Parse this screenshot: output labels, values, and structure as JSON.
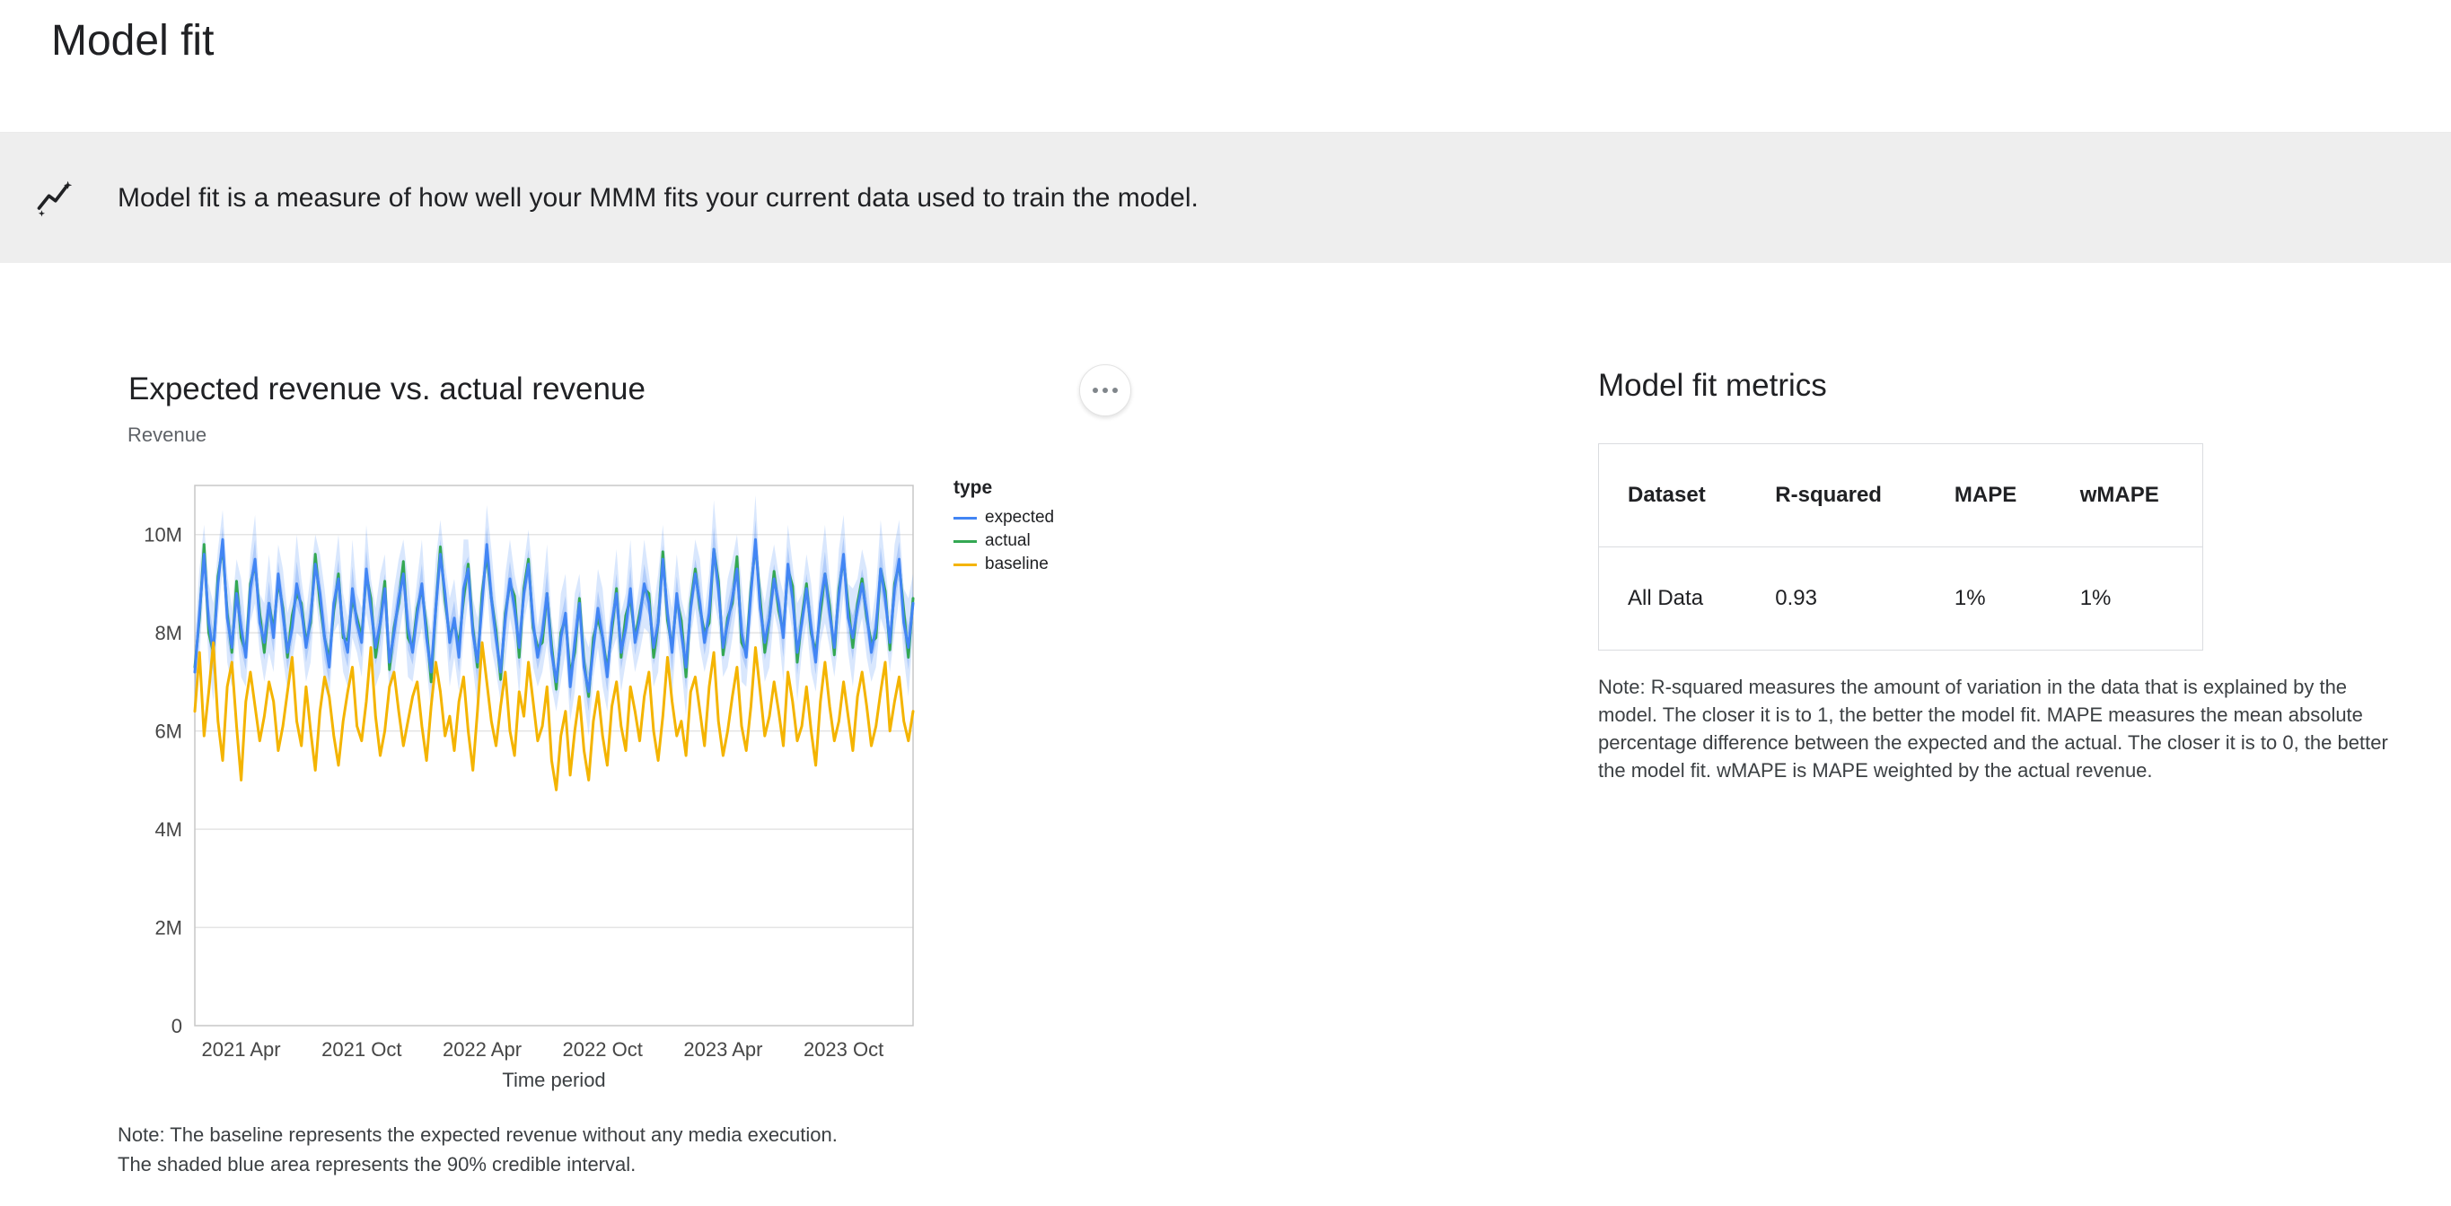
{
  "page": {
    "title": "Model fit"
  },
  "banner": {
    "icon": "insights-icon",
    "text": "Model fit is a measure of how well your MMM fits your current data used to train the model."
  },
  "chart_section": {
    "title": "Expected revenue vs. actual revenue",
    "y_axis_label": "Revenue",
    "note": "Note: The baseline represents the expected revenue without any media execution.\nThe shaded blue area represents the 90% credible interval."
  },
  "metrics_section": {
    "title": "Model fit metrics",
    "table": {
      "headers": [
        "Dataset",
        "R-squared",
        "MAPE",
        "wMAPE"
      ],
      "rows": [
        [
          "All Data",
          "0.93",
          "1%",
          "1%"
        ]
      ]
    },
    "note": "Note: R-squared measures the amount of variation in the data that is explained by the model. The closer it is to 1, the better the model fit. MAPE measures the mean absolute percentage difference between the expected and the actual. The closer it is to 0, the better the model fit. wMAPE is MAPE weighted by the actual revenue."
  },
  "chart_data": {
    "type": "line",
    "title": "Expected revenue vs. actual revenue",
    "xlabel": "Time period",
    "ylabel": "Revenue",
    "x_unit": "week_index_from_2021_jan",
    "y_unit": "revenue_millions",
    "xlim": [
      0,
      155
    ],
    "ylim": [
      0,
      11
    ],
    "grid": "horizontal",
    "legend_position": "right",
    "legend_title": "type",
    "y_ticks": [
      {
        "v": 0,
        "label": "0"
      },
      {
        "v": 2,
        "label": "2M"
      },
      {
        "v": 4,
        "label": "4M"
      },
      {
        "v": 6,
        "label": "6M"
      },
      {
        "v": 8,
        "label": "8M"
      },
      {
        "v": 10,
        "label": "10M"
      }
    ],
    "x_ticks": [
      {
        "i": 10,
        "label": "2021 Apr"
      },
      {
        "i": 36,
        "label": "2021 Oct"
      },
      {
        "i": 62,
        "label": "2022 Apr"
      },
      {
        "i": 88,
        "label": "2022 Oct"
      },
      {
        "i": 114,
        "label": "2023 Apr"
      },
      {
        "i": 140,
        "label": "2023 Oct"
      }
    ],
    "series": [
      {
        "name": "expected",
        "color": "#4285F4",
        "values": [
          7.2,
          8.4,
          9.6,
          8.2,
          7.6,
          9.0,
          9.9,
          8.3,
          7.7,
          8.8,
          8.1,
          7.5,
          8.9,
          9.5,
          8.2,
          7.8,
          8.6,
          7.9,
          9.2,
          8.4,
          7.6,
          8.1,
          9.0,
          8.5,
          7.7,
          8.3,
          9.4,
          8.8,
          7.9,
          7.3,
          8.6,
          9.1,
          8.0,
          7.6,
          8.9,
          8.2,
          7.8,
          9.3,
          8.5,
          7.7,
          8.2,
          8.9,
          7.4,
          8.0,
          8.7,
          9.2,
          8.1,
          7.6,
          8.4,
          9.0,
          7.9,
          7.2,
          8.5,
          9.6,
          8.8,
          7.8,
          8.3,
          7.5,
          8.9,
          9.3,
          8.0,
          7.4,
          8.6,
          9.8,
          8.7,
          7.9,
          7.2,
          8.3,
          9.1,
          8.5,
          7.7,
          8.8,
          9.4,
          8.2,
          7.5,
          8.0,
          8.8,
          7.6,
          7.0,
          7.9,
          8.4,
          6.9,
          7.8,
          8.6,
          7.3,
          6.8,
          7.7,
          8.5,
          7.9,
          7.1,
          8.2,
          8.8,
          7.6,
          8.1,
          8.9,
          7.8,
          8.3,
          9.0,
          8.6,
          7.7,
          8.2,
          9.5,
          8.4,
          7.6,
          8.8,
          8.0,
          7.3,
          8.5,
          9.2,
          8.6,
          7.8,
          8.4,
          9.7,
          8.9,
          7.7,
          8.2,
          8.7,
          9.3,
          8.0,
          7.5,
          8.8,
          9.9,
          8.5,
          7.8,
          8.3,
          9.1,
          8.6,
          7.9,
          9.4,
          8.7,
          7.6,
          8.2,
          8.9,
          8.1,
          7.4,
          8.6,
          9.2,
          8.4,
          7.7,
          8.8,
          9.6,
          8.3,
          7.9,
          8.5,
          9.0,
          8.4,
          7.6,
          8.1,
          9.3,
          8.7,
          7.8,
          8.9,
          9.5,
          8.2,
          7.7,
          8.6
        ]
      },
      {
        "name": "actual",
        "color": "#34A853",
        "values": [
          7.3,
          8.3,
          9.8,
          8.0,
          7.6,
          9.15,
          9.75,
          8.4,
          7.6,
          9.05,
          7.9,
          7.6,
          9.0,
          9.4,
          8.4,
          7.6,
          8.6,
          8.05,
          9.05,
          8.5,
          7.5,
          8.35,
          8.8,
          8.6,
          7.8,
          8.2,
          9.6,
          8.6,
          7.9,
          7.45,
          8.45,
          9.2,
          7.9,
          7.85,
          8.7,
          8.3,
          7.9,
          9.2,
          8.7,
          7.5,
          8.2,
          9.05,
          7.25,
          8.1,
          8.6,
          9.45,
          7.9,
          7.7,
          8.5,
          8.9,
          8.1,
          7.0,
          8.5,
          9.75,
          8.65,
          7.9,
          8.2,
          7.75,
          8.7,
          9.4,
          8.1,
          7.3,
          8.8,
          9.6,
          8.7,
          8.05,
          7.05,
          8.4,
          9.0,
          8.75,
          7.5,
          8.9,
          9.5,
          8.1,
          7.7,
          7.8,
          8.8,
          7.75,
          6.85,
          8.0,
          8.3,
          7.15,
          7.6,
          8.7,
          7.4,
          6.7,
          7.9,
          8.3,
          7.9,
          7.25,
          8.05,
          8.9,
          7.5,
          8.35,
          8.7,
          7.9,
          8.4,
          8.9,
          8.8,
          7.5,
          8.2,
          9.65,
          8.25,
          7.7,
          8.7,
          8.25,
          7.1,
          8.6,
          9.3,
          8.5,
          8.0,
          8.2,
          9.7,
          9.05,
          7.55,
          8.3,
          8.6,
          9.55,
          7.8,
          7.6,
          8.9,
          9.8,
          8.7,
          7.6,
          8.3,
          9.25,
          8.45,
          8.0,
          9.3,
          8.95,
          7.4,
          8.3,
          9.0,
          8.0,
          7.6,
          8.4,
          9.2,
          8.55,
          7.55,
          8.9,
          9.5,
          8.55,
          7.7,
          8.6,
          9.1,
          8.3,
          7.8,
          7.9,
          9.3,
          8.85,
          7.65,
          9.0,
          9.4,
          8.45,
          7.5,
          8.7
        ]
      },
      {
        "name": "baseline",
        "color": "#F4B400",
        "values": [
          6.4,
          7.6,
          5.9,
          6.8,
          7.8,
          6.2,
          5.4,
          6.9,
          7.4,
          6.1,
          5.0,
          6.6,
          7.2,
          6.5,
          5.8,
          6.3,
          7.0,
          6.6,
          5.6,
          6.1,
          6.8,
          7.5,
          6.2,
          5.7,
          6.9,
          6.0,
          5.2,
          6.4,
          7.1,
          6.7,
          5.9,
          5.3,
          6.2,
          6.8,
          7.3,
          6.1,
          5.8,
          6.6,
          7.7,
          6.3,
          5.5,
          6.0,
          6.9,
          7.2,
          6.4,
          5.7,
          6.2,
          6.7,
          7.0,
          6.1,
          5.4,
          6.5,
          7.4,
          6.8,
          5.9,
          6.3,
          5.6,
          6.6,
          7.1,
          6.0,
          5.2,
          6.4,
          7.8,
          7.0,
          6.2,
          5.7,
          6.5,
          7.2,
          6.0,
          5.5,
          6.8,
          6.3,
          7.4,
          6.6,
          5.8,
          6.1,
          6.9,
          5.4,
          4.8,
          5.9,
          6.4,
          5.1,
          6.0,
          6.7,
          5.6,
          5.0,
          6.2,
          6.8,
          5.9,
          5.3,
          6.5,
          7.0,
          6.1,
          5.6,
          6.9,
          6.4,
          5.8,
          6.7,
          7.2,
          6.0,
          5.4,
          6.3,
          7.5,
          6.6,
          5.9,
          6.2,
          5.5,
          6.8,
          7.1,
          6.4,
          5.7,
          6.9,
          7.6,
          6.2,
          5.5,
          6.0,
          6.7,
          7.3,
          6.1,
          5.6,
          6.5,
          7.7,
          6.8,
          5.9,
          6.3,
          7.0,
          6.4,
          5.7,
          7.2,
          6.6,
          5.8,
          6.1,
          6.9,
          6.0,
          5.3,
          6.6,
          7.4,
          6.5,
          5.8,
          6.2,
          7.0,
          6.3,
          5.6,
          6.7,
          7.2,
          6.5,
          5.7,
          6.1,
          6.8,
          7.4,
          6.0,
          6.6,
          7.1,
          6.2,
          5.8,
          6.4
        ]
      }
    ],
    "band": {
      "label": "90% credible interval",
      "center": "expected",
      "color90": "rgba(66,133,244,0.20)",
      "color50": "rgba(66,133,244,0.26)",
      "halfwidth90": [
        0.7,
        0.9,
        0.6,
        0.8,
        1.0,
        0.7,
        0.6,
        0.9,
        0.8,
        0.7,
        1.0,
        0.6,
        0.7,
        0.9,
        0.6,
        0.8,
        1.0,
        0.7,
        0.6,
        0.9,
        0.8,
        0.7,
        1.0,
        0.6,
        0.7,
        0.9,
        0.6,
        0.8,
        1.0,
        0.7,
        0.6,
        0.9,
        0.8,
        0.7,
        1.0,
        0.6,
        0.7,
        0.9,
        0.6,
        0.8,
        1.0,
        0.7,
        0.6,
        0.9,
        0.8,
        0.7,
        1.0,
        0.6,
        0.7,
        0.9,
        0.6,
        0.8,
        1.0,
        0.7,
        0.6,
        0.9,
        0.8,
        0.7,
        1.0,
        0.6,
        0.7,
        0.9,
        0.6,
        0.8,
        1.0,
        0.7,
        0.6,
        0.9,
        0.8,
        0.7,
        1.0,
        0.6,
        0.7,
        0.9,
        0.6,
        0.8,
        1.0,
        0.7,
        0.6,
        0.9,
        0.8,
        0.7,
        1.0,
        0.6,
        0.7,
        0.9,
        0.6,
        0.8,
        1.0,
        0.7,
        0.6,
        0.9,
        0.8,
        0.7,
        1.0,
        0.6,
        0.7,
        0.9,
        0.6,
        0.8,
        1.0,
        0.7,
        0.6,
        0.9,
        0.8,
        0.7,
        1.0,
        0.6,
        0.7,
        0.9,
        0.6,
        0.8,
        1.0,
        0.7,
        0.6,
        0.9,
        0.8,
        0.7,
        1.0,
        0.6,
        0.7,
        0.9,
        0.6,
        0.8,
        1.0,
        0.7,
        0.6,
        0.9,
        0.8,
        0.7,
        1.0,
        0.6,
        0.7,
        0.9,
        0.6,
        0.8,
        1.0,
        0.7,
        0.6,
        0.9,
        0.8,
        0.7,
        1.0,
        0.6,
        0.7,
        0.9,
        0.6,
        0.8,
        1.0,
        0.7,
        0.6,
        0.9,
        0.8,
        0.7,
        1.0,
        0.6
      ],
      "halfwidth50": [
        0.3,
        0.4,
        0.25,
        0.35,
        0.45,
        0.3,
        0.25,
        0.4,
        0.35,
        0.3,
        0.45,
        0.25,
        0.3,
        0.4,
        0.25,
        0.35,
        0.45,
        0.3,
        0.25,
        0.4,
        0.35,
        0.3,
        0.45,
        0.25,
        0.3,
        0.4,
        0.25,
        0.35,
        0.45,
        0.3,
        0.25,
        0.4,
        0.35,
        0.3,
        0.45,
        0.25,
        0.3,
        0.4,
        0.25,
        0.35,
        0.45,
        0.3,
        0.25,
        0.4,
        0.35,
        0.3,
        0.45,
        0.25,
        0.3,
        0.4,
        0.25,
        0.35,
        0.45,
        0.3,
        0.25,
        0.4,
        0.35,
        0.3,
        0.45,
        0.25,
        0.3,
        0.4,
        0.25,
        0.35,
        0.45,
        0.3,
        0.25,
        0.4,
        0.35,
        0.3,
        0.45,
        0.25,
        0.3,
        0.4,
        0.25,
        0.35,
        0.45,
        0.3,
        0.25,
        0.4,
        0.35,
        0.3,
        0.45,
        0.25,
        0.3,
        0.4,
        0.25,
        0.35,
        0.45,
        0.3,
        0.25,
        0.4,
        0.35,
        0.3,
        0.45,
        0.25,
        0.3,
        0.4,
        0.25,
        0.35,
        0.45,
        0.3,
        0.25,
        0.4,
        0.35,
        0.3,
        0.45,
        0.25,
        0.3,
        0.4,
        0.25,
        0.35,
        0.45,
        0.3,
        0.25,
        0.4,
        0.35,
        0.3,
        0.45,
        0.25,
        0.3,
        0.4,
        0.25,
        0.35,
        0.45,
        0.3,
        0.25,
        0.4,
        0.35,
        0.3,
        0.45,
        0.25,
        0.3,
        0.4,
        0.25,
        0.35,
        0.45,
        0.3,
        0.25,
        0.4,
        0.35,
        0.3,
        0.45,
        0.25,
        0.3,
        0.4,
        0.25,
        0.35,
        0.45,
        0.3,
        0.25,
        0.4,
        0.35,
        0.3,
        0.45,
        0.25
      ]
    }
  }
}
